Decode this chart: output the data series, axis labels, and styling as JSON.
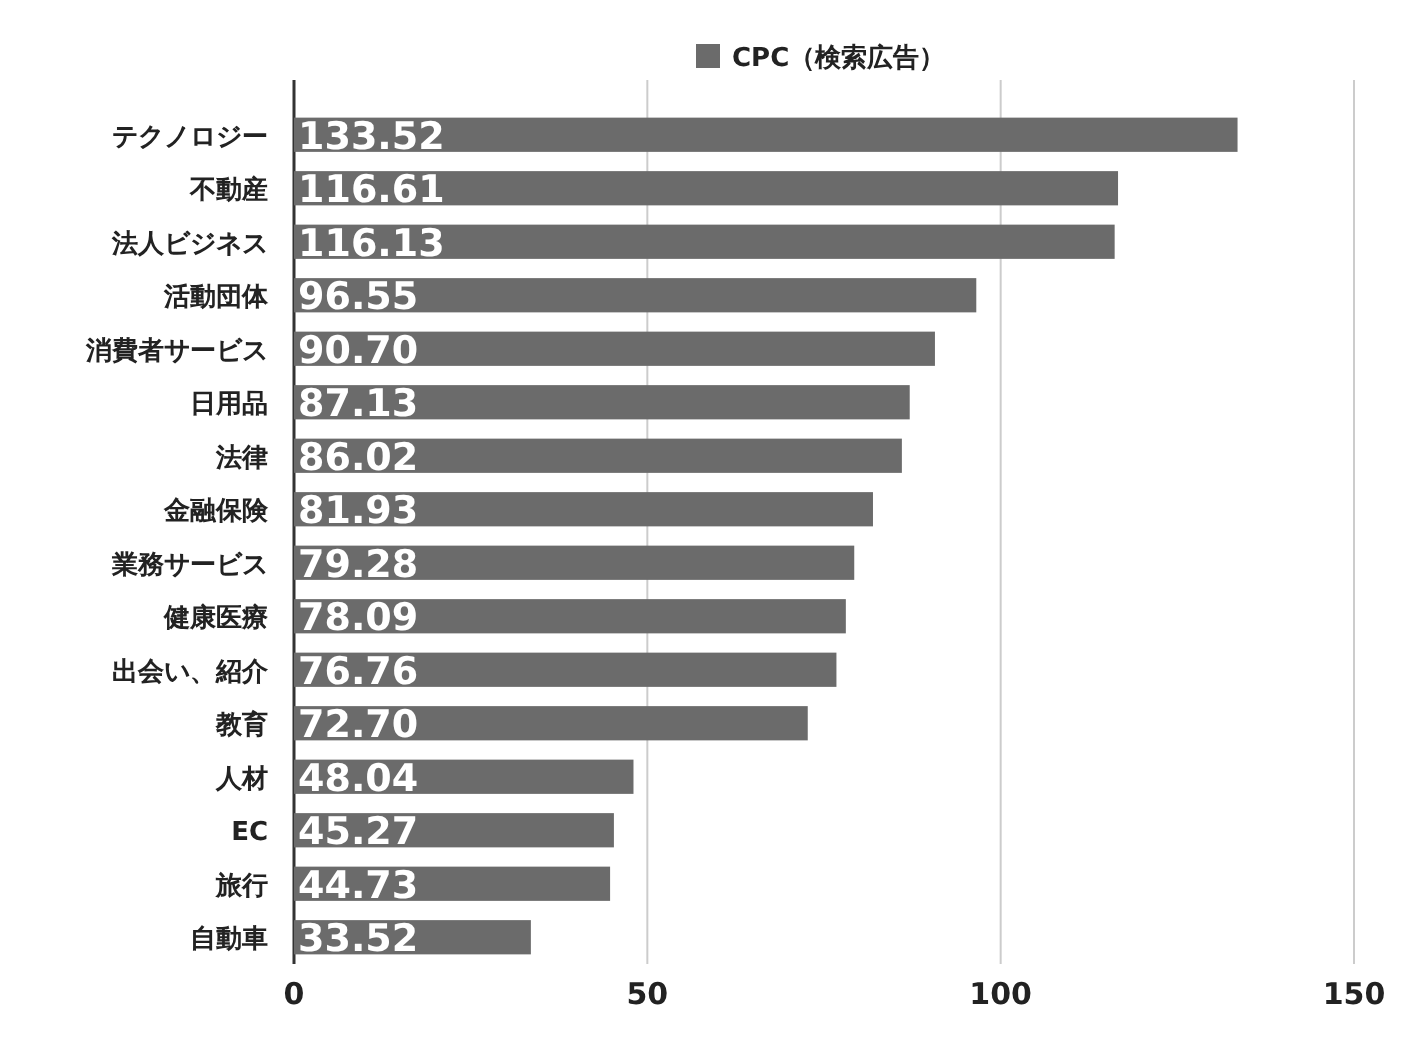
{
  "chart_data": {
    "type": "bar",
    "orientation": "horizontal",
    "categories": [
      "テクノロジー",
      "不動産",
      "法人ビジネス",
      "活動団体",
      "消費者サービス",
      "日用品",
      "法律",
      "金融保険",
      "業務サービス",
      "健康医療",
      "出会い、紹介",
      "教育",
      "人材",
      "EC",
      "旅行",
      "自動車"
    ],
    "series": [
      {
        "name": "CPC（検索広告）",
        "color": "#6b6b6b",
        "values": [
          133.52,
          116.61,
          116.13,
          96.55,
          90.7,
          87.13,
          86.02,
          81.93,
          79.28,
          78.09,
          76.76,
          72.7,
          48.04,
          45.27,
          44.73,
          33.52
        ],
        "value_labels": [
          "133.52",
          "116.61",
          "116.13",
          "96.55",
          "90.70",
          "87.13",
          "86.02",
          "81.93",
          "79.28",
          "78.09",
          "76.76",
          "72.70",
          "48.04",
          "45.27",
          "44.73",
          "33.52"
        ]
      }
    ],
    "xlim": [
      0,
      150
    ],
    "xticks": [
      0,
      50,
      100,
      150
    ],
    "grid": "x",
    "legend": "top"
  }
}
